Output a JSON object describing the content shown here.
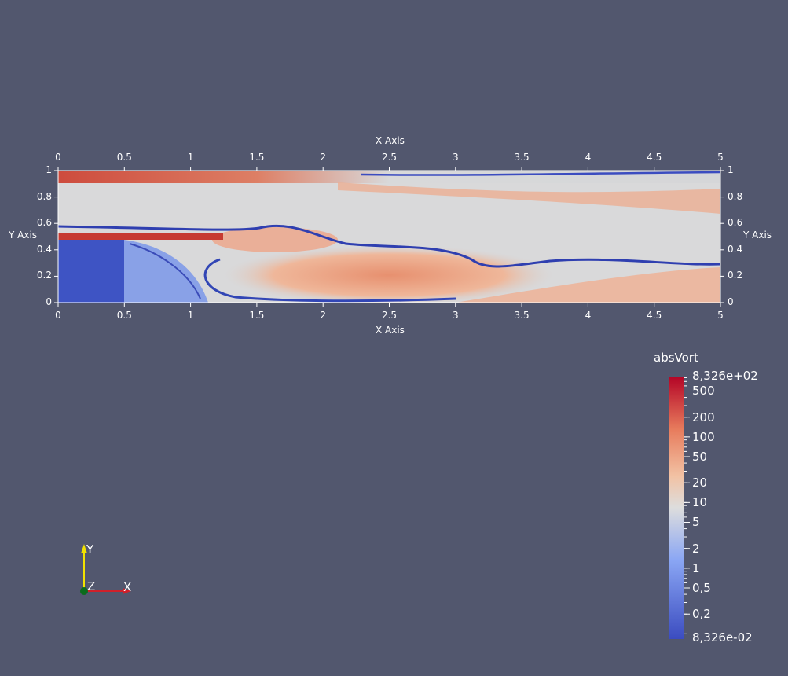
{
  "plot": {
    "x_axis_title": "X Axis",
    "y_axis_title": "Y Axis",
    "x_ticks": [
      "0",
      "0.5",
      "1",
      "1.5",
      "2",
      "2.5",
      "3",
      "3.5",
      "4",
      "4.5",
      "5"
    ],
    "y_ticks": [
      "0",
      "0.2",
      "0.4",
      "0.6",
      "0.8",
      "1"
    ],
    "x_range": [
      0,
      5
    ],
    "y_range": [
      0,
      1
    ]
  },
  "colorbar": {
    "title": "absVort",
    "max_label": "8,326e+02",
    "min_label": "8,326e-02",
    "labels": [
      "500",
      "200",
      "100",
      "50",
      "20",
      "10",
      "5",
      "2",
      "1",
      "0,5",
      "0,2"
    ],
    "scale": "log",
    "colormap": [
      "#3b4cc0",
      "#dddddd",
      "#b40426"
    ]
  },
  "orientation_axes": {
    "x": "X",
    "y": "Y",
    "z": "Z"
  },
  "colors": {
    "background": "#52576e",
    "axis_x": "#d0202a",
    "axis_y": "#f2e200",
    "axis_z": "#0b6b1c"
  }
}
